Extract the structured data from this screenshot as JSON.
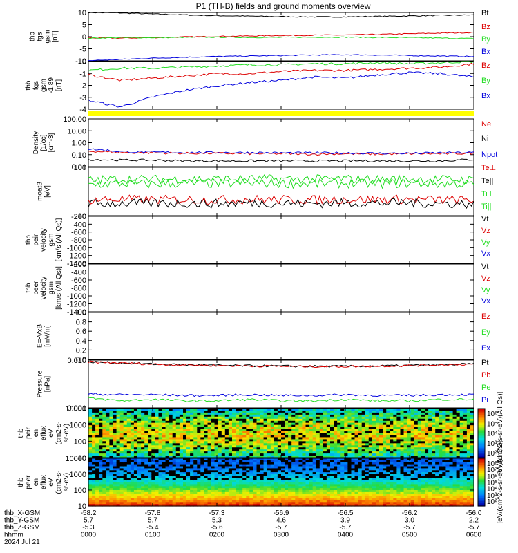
{
  "title": "P1 (TH-B) fields and ground moments overview",
  "colors": {
    "black": "#000000",
    "red": "#dd0000",
    "green": "#22dd22",
    "blue": "#0000dd",
    "yellow": "#ffff00"
  },
  "chart_data": [
    {
      "panel": "fgs",
      "type": "line",
      "ylabel": [
        "thb",
        "fgs",
        "gsm",
        "[nT]"
      ],
      "ylim": [
        -10,
        10
      ],
      "ticks": [
        "10",
        "5",
        "0",
        "-5",
        "-10"
      ],
      "legend": [
        {
          "label": "Bt",
          "color": "black"
        },
        {
          "label": "Bz",
          "color": "red"
        },
        {
          "label": "By",
          "color": "green"
        },
        {
          "label": "Bx",
          "color": "blue"
        }
      ],
      "series": [
        {
          "name": "Bt",
          "values": [
            10,
            9.8,
            9.4,
            9.0,
            8.7,
            8.5,
            8.3,
            8.2,
            8.2,
            8.4,
            8.6,
            8.8,
            9.0
          ]
        },
        {
          "name": "Bz",
          "values": [
            -0.5,
            -0.6,
            -0.4,
            -0.1,
            0.1,
            0.3,
            0.5,
            0.6,
            0.7,
            0.9,
            1.2,
            1.5,
            1.7
          ]
        },
        {
          "name": "By",
          "values": [
            -0.6,
            -0.4,
            -0.4,
            -0.3,
            -0.2,
            -0.3,
            -0.3,
            -0.2,
            -0.2,
            -0.3,
            -0.4,
            -0.6,
            -0.8
          ]
        },
        {
          "name": "Bx",
          "values": [
            -9.9,
            -9.4,
            -8.9,
            -8.5,
            -8.2,
            -8.0,
            -7.8,
            -7.6,
            -7.5,
            -7.6,
            -7.8,
            -8.0,
            -8.2
          ]
        }
      ]
    },
    {
      "panel": "fgs_dsl",
      "type": "line",
      "ylabel": [
        "thb",
        "fgs",
        "gsm",
        "-1.89",
        "[nT]"
      ],
      "ylim": [
        -4.3,
        0
      ],
      "ticks": [
        "0",
        "-1",
        "-2",
        "-3",
        "-4"
      ],
      "legend": [
        {
          "label": "Bz",
          "color": "red"
        },
        {
          "label": "By",
          "color": "green"
        },
        {
          "label": "Bx",
          "color": "blue"
        }
      ],
      "series": [
        {
          "name": "Bz",
          "values": [
            -1.2,
            -1.7,
            -1.5,
            -1.3,
            -1.1,
            -1.1,
            -0.9,
            -0.8,
            -0.8,
            -0.7,
            -0.6,
            -0.5,
            -0.2
          ]
        },
        {
          "name": "By",
          "values": [
            -0.8,
            -0.6,
            -0.6,
            -0.5,
            -0.4,
            -0.3,
            -0.3,
            -0.2,
            -0.2,
            -0.1,
            -0.2,
            -0.1,
            0
          ]
        },
        {
          "name": "Bx",
          "values": [
            -3.5,
            -4.1,
            -3.2,
            -2.6,
            -2.2,
            -1.9,
            -1.7,
            -1.4,
            -1.5,
            -1.2,
            -1.0,
            -1.1,
            -1.4
          ]
        }
      ]
    },
    {
      "panel": "density",
      "type": "line",
      "ylabel": [
        "Density",
        "[1/cc]",
        "[cm-3]"
      ],
      "ylim": [
        0.01,
        100
      ],
      "log": true,
      "ticks": [
        "100.00",
        "10.00",
        "1.00",
        "0.10",
        "0.01"
      ],
      "legend": [
        {
          "label": "Ne",
          "color": "red"
        },
        {
          "label": "Ni",
          "color": "black"
        },
        {
          "label": "Npot",
          "color": "blue"
        }
      ],
      "series": [
        {
          "name": "Ne",
          "values": [
            0.2,
            0.15,
            0.14,
            0.13,
            0.13,
            0.12,
            0.12,
            0.11,
            0.12,
            0.11,
            0.12,
            0.12,
            0.13
          ]
        },
        {
          "name": "Ni",
          "values": [
            0.04,
            0.035,
            0.035,
            0.03,
            0.03,
            0.03,
            0.03,
            0.03,
            0.03,
            0.03,
            0.03,
            0.03,
            0.04
          ]
        },
        {
          "name": "Npot",
          "values": [
            0.3,
            0.18,
            0.16,
            0.15,
            0.15,
            0.15,
            0.14,
            0.14,
            0.14,
            0.13,
            0.13,
            0.14,
            0.15
          ]
        }
      ]
    },
    {
      "panel": "temperature",
      "type": "line",
      "ylabel": [
        "moat3",
        "[eV]"
      ],
      "ylim": [
        10,
        700
      ],
      "log": true,
      "ticks": [
        "100",
        "10"
      ],
      "legend": [
        {
          "label": "Te⊥",
          "color": "red"
        },
        {
          "label": "Te||",
          "color": "black"
        },
        {
          "label": "Ti⊥",
          "color": "green"
        },
        {
          "label": "Ti||",
          "color": "green"
        }
      ],
      "series": [
        {
          "name": "Ti||",
          "values": [
            150,
            170,
            160,
            170,
            165,
            170,
            170,
            165,
            170,
            165,
            170,
            165,
            160
          ]
        },
        {
          "name": "Ti⊥",
          "values": [
            220,
            250,
            240,
            250,
            245,
            250,
            250,
            245,
            250,
            240,
            250,
            240,
            230
          ]
        },
        {
          "name": "Te⊥",
          "values": [
            40,
            42,
            40,
            41,
            40,
            42,
            41,
            40,
            42,
            41,
            42,
            40,
            38
          ]
        },
        {
          "name": "Te||",
          "values": [
            28,
            30,
            29,
            30,
            29,
            31,
            30,
            29,
            31,
            30,
            31,
            29,
            28
          ]
        }
      ]
    },
    {
      "panel": "peir_velocity",
      "type": "line",
      "ylabel": [
        "thb",
        "peir",
        "velocity",
        "gsm",
        "[km/s (All Qs)]"
      ],
      "ylim": [
        -1400,
        0
      ],
      "ticks": [
        "-200",
        "-400",
        "-600",
        "-800",
        "-1000",
        "-1200",
        "-1400"
      ],
      "legend": [
        {
          "label": "Vt",
          "color": "black"
        },
        {
          "label": "Vz",
          "color": "red"
        },
        {
          "label": "Vy",
          "color": "green"
        },
        {
          "label": "Vx",
          "color": "blue"
        }
      ]
    },
    {
      "panel": "peer_velocity",
      "type": "line",
      "ylabel": [
        "thb",
        "peer",
        "velocity",
        "gsm",
        "[km/s (All Qs)]"
      ],
      "ylim": [
        -1400,
        0
      ],
      "ticks": [
        "-200",
        "-400",
        "-600",
        "-800",
        "-1000",
        "-1200",
        "-1400"
      ],
      "legend": [
        {
          "label": "Vt",
          "color": "black"
        },
        {
          "label": "Vz",
          "color": "red"
        },
        {
          "label": "Vy",
          "color": "green"
        },
        {
          "label": "Vx",
          "color": "blue"
        }
      ]
    },
    {
      "panel": "efield",
      "type": "line",
      "ylabel": [
        "E=-VxB",
        "[mV/m]"
      ],
      "ylim": [
        0,
        1
      ],
      "ticks": [
        "1.0",
        "0.8",
        "0.6",
        "0.4",
        "0.2",
        "0.0"
      ],
      "legend": [
        {
          "label": "Ez",
          "color": "red"
        },
        {
          "label": "Ey",
          "color": "green"
        },
        {
          "label": "Ex",
          "color": "blue"
        }
      ]
    },
    {
      "panel": "pressure",
      "type": "line",
      "ylabel": [
        "Pressure",
        "[nPa]"
      ],
      "ylim": [
        0.0002,
        0.1
      ],
      "log": true,
      "ticks": [
        "0.010",
        "0.001"
      ],
      "legend": [
        {
          "label": "Pt",
          "color": "black"
        },
        {
          "label": "Pb",
          "color": "red"
        },
        {
          "label": "Pe",
          "color": "green"
        },
        {
          "label": "Pi",
          "color": "blue"
        }
      ],
      "series": [
        {
          "name": "Pt",
          "values": [
            0.08,
            0.07,
            0.06,
            0.055,
            0.05,
            0.048,
            0.046,
            0.045,
            0.045,
            0.047,
            0.05,
            0.055,
            0.06
          ]
        },
        {
          "name": "Pb",
          "values": [
            0.079,
            0.069,
            0.059,
            0.054,
            0.049,
            0.047,
            0.045,
            0.044,
            0.044,
            0.046,
            0.049,
            0.054,
            0.059
          ]
        },
        {
          "name": "Pe",
          "values": [
            0.0007,
            0.0005,
            0.0006,
            0.0005,
            0.0005,
            0.0006,
            0.0005,
            0.0005,
            0.0006,
            0.0005,
            0.0005,
            0.0006,
            0.0006
          ]
        },
        {
          "name": "Pi",
          "values": [
            0.0012,
            0.0011,
            0.0011,
            0.001,
            0.001,
            0.0011,
            0.001,
            0.001,
            0.0011,
            0.001,
            0.001,
            0.0011,
            0.0011
          ]
        }
      ]
    },
    {
      "panel": "peir_spec",
      "type": "heatmap",
      "ylabel": [
        "thb",
        "peir",
        "en",
        "eflux",
        "eV",
        "(cm2-s-",
        "sr-eV)"
      ],
      "ylim": [
        5,
        25000
      ],
      "log": true,
      "ticks": [
        "10000",
        "1000",
        "100",
        "10"
      ],
      "colorbar": {
        "tick_labels": [
          "10⁶",
          "10⁵",
          "10⁴",
          "10³",
          "10²"
        ],
        "label": "[eV/(cm^2-s-sr-eV)(All Qs)]"
      }
    },
    {
      "panel": "peer_spec",
      "type": "heatmap",
      "ylabel": [
        "thb",
        "peer",
        "en",
        "eflux",
        "eV",
        "(cm2-s-",
        "sr-eV)"
      ],
      "ylim": [
        5,
        25000
      ],
      "log": true,
      "ticks": [
        "10000",
        "1000",
        "100",
        "10"
      ],
      "colorbar": {
        "tick_labels": [
          "10⁸",
          "10⁷",
          "10⁶",
          "10⁵",
          "10⁴",
          "10³",
          "10²"
        ],
        "label": "[eV/(cm^2-s-sr-eV)(All Qs)]"
      }
    }
  ],
  "x_axis": {
    "rows": [
      {
        "label": "thb_X-GSM",
        "values": [
          "-58.2",
          "-57.8",
          "-57.3",
          "-56.9",
          "-56.5",
          "-56.2",
          "-56.0"
        ]
      },
      {
        "label": "thb_Y-GSM",
        "values": [
          "5.7",
          "5.7",
          "5.3",
          "4.6",
          "3.9",
          "3.0",
          "2.2"
        ]
      },
      {
        "label": "thb_Z-GSM",
        "values": [
          "-5.3",
          "-5.4",
          "-5.6",
          "-5.7",
          "-5.7",
          "-5.7",
          "-5.7"
        ]
      },
      {
        "label": "hhmm",
        "values": [
          "0000",
          "0100",
          "0200",
          "0300",
          "0400",
          "0500",
          "0600"
        ]
      }
    ],
    "date": "2024 Jul 21"
  }
}
